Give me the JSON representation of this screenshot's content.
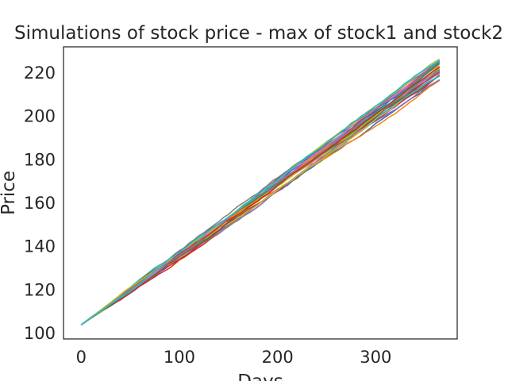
{
  "chart_data": {
    "type": "line",
    "title": "Simulations of stock price - max of stock1 and stock2",
    "xlabel": "Days",
    "ylabel": "Price",
    "xlim": [
      -18,
      383
    ],
    "ylim": [
      97.5,
      232
    ],
    "xticks": [
      0,
      100,
      200,
      300
    ],
    "yticks": [
      100,
      120,
      140,
      160,
      180,
      200,
      220
    ],
    "grid": false,
    "legend": "none",
    "series_count": 30,
    "start": {
      "day": 0,
      "price": 104
    },
    "end": {
      "day": 365,
      "price_min": 218,
      "price_max": 226
    },
    "colors": [
      "#1f77b4",
      "#ff7f0e",
      "#2ca02c",
      "#d62728",
      "#9467bd",
      "#8c564b",
      "#e377c2",
      "#7f7f7f",
      "#bcbd22",
      "#17becf"
    ]
  }
}
